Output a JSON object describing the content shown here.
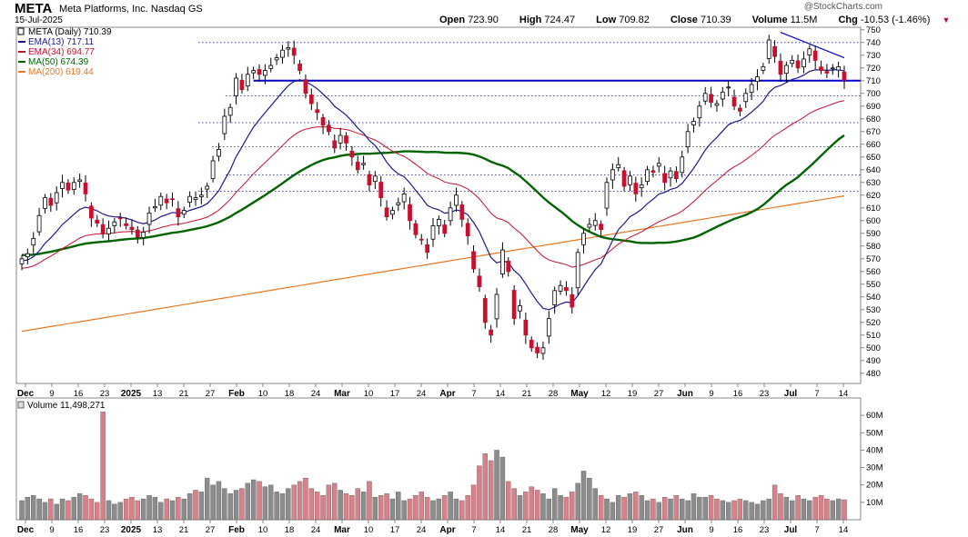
{
  "header": {
    "symbol": "META",
    "company": "Meta Platforms, Inc.  Nasdaq GS",
    "date": "15-Jul-2025",
    "watermark": "@StockCharts.com",
    "open_label": "Open",
    "open": "723.90",
    "high_label": "High",
    "high": "724.47",
    "low_label": "Low",
    "low": "709.82",
    "close_label": "Close",
    "close": "710.39",
    "volume_label": "Volume",
    "volume": "11.5M",
    "chg_label": "Chg",
    "chg": "-10.53 (-1.46%)"
  },
  "legend": [
    {
      "label": "META (Daily) 710.39",
      "color": "#000000"
    },
    {
      "label": "EMA(13) 717.11",
      "color": "#1a1a8c"
    },
    {
      "label": "EMA(34) 694.77",
      "color": "#c8102e"
    },
    {
      "label": "MA(50) 674.39",
      "color": "#006400"
    },
    {
      "label": "MA(200) 619.44",
      "color": "#e87722"
    }
  ],
  "volume_legend": "Volume 11,498,271",
  "colors": {
    "up": "#8c8c8c",
    "down": "#c8102e",
    "vol_up": "#8c8c8c",
    "vol_down": "#d98088",
    "support": "#0000cc",
    "ema13": "#1a1a8c",
    "ema34": "#c8102e",
    "ma50": "#006400",
    "ma200": "#e87722"
  },
  "chart_data": [
    {
      "type": "candlestick",
      "title": "META (Daily)",
      "ylim": [
        472,
        752
      ],
      "y_ticks": [
        480,
        490,
        500,
        510,
        520,
        530,
        540,
        550,
        560,
        570,
        580,
        590,
        600,
        610,
        620,
        630,
        640,
        650,
        660,
        670,
        680,
        690,
        700,
        710,
        720,
        730,
        740,
        750
      ],
      "x_tick_labels": [
        "Dec",
        "9",
        "16",
        "23",
        "2025",
        "13",
        "21",
        "27",
        "Feb",
        "10",
        "18",
        "24",
        "Mar",
        "10",
        "17",
        "24",
        "Apr",
        "7",
        "14",
        "21",
        "28",
        "May",
        "12",
        "19",
        "27",
        "Jun",
        "9",
        "16",
        "23",
        "Jul",
        "7",
        "14"
      ],
      "bold_tick_labels": [
        "Dec",
        "2025",
        "Feb",
        "Mar",
        "Apr",
        "May",
        "Jun",
        "Jul"
      ],
      "close": [
        570,
        574,
        586,
        604,
        618,
        612,
        622,
        630,
        624,
        630,
        632,
        621,
        602,
        598,
        590,
        594,
        599,
        602,
        596,
        593,
        587,
        591,
        606,
        611,
        619,
        614,
        617,
        603,
        608,
        619,
        618,
        620,
        627,
        647,
        656,
        682,
        689,
        712,
        703,
        715,
        718,
        715,
        718,
        722,
        728,
        734,
        736,
        730,
        718,
        700,
        692,
        685,
        675,
        670,
        657,
        667,
        661,
        650,
        640,
        645,
        628,
        635,
        618,
        603,
        608,
        614,
        621,
        600,
        589,
        585,
        575,
        596,
        601,
        590,
        610,
        620,
        601,
        588,
        562,
        548,
        520,
        510,
        542,
        577,
        560,
        523,
        533,
        510,
        500,
        496,
        500,
        523,
        545,
        549,
        545,
        532,
        575,
        590,
        597,
        600,
        593,
        630,
        640,
        644,
        627,
        635,
        621,
        628,
        640,
        638,
        645,
        630,
        639,
        633,
        650,
        670,
        678,
        690,
        700,
        693,
        692,
        701,
        705,
        690,
        686,
        700,
        707,
        713,
        721,
        742,
        729,
        715,
        722,
        726,
        720,
        727,
        735,
        726,
        718,
        716,
        720,
        721,
        710.4
      ],
      "highlight_levels": [
        740,
        710,
        698,
        677,
        658,
        636,
        623
      ],
      "resistance_trendline": [
        [
          131,
          748
        ],
        [
          142,
          728
        ]
      ],
      "ema13_last": 717.11,
      "ema34_last": 694.77,
      "ma50_last": 674.39,
      "ma200_last": 619.44
    },
    {
      "type": "bar",
      "title": "Volume",
      "ylim": [
        0,
        70
      ],
      "y_tick_labels": [
        "10M",
        "20M",
        "30M",
        "40M",
        "50M",
        "60M"
      ],
      "y_ticks": [
        10,
        20,
        30,
        40,
        50,
        60
      ],
      "values": [
        11,
        13,
        14,
        12,
        10,
        12,
        9,
        12,
        11,
        13,
        15,
        14,
        12,
        10,
        62,
        11,
        9,
        10,
        12,
        13,
        11,
        12,
        14,
        13,
        10,
        12,
        11,
        13,
        12,
        15,
        17,
        16,
        24,
        20,
        22,
        18,
        15,
        17,
        18,
        21,
        23,
        22,
        19,
        20,
        16,
        15,
        18,
        20,
        22,
        24,
        18,
        16,
        14,
        20,
        21,
        17,
        15,
        14,
        18,
        16,
        22,
        13,
        14,
        15,
        12,
        16,
        11,
        12,
        14,
        16,
        13,
        11,
        12,
        14,
        16,
        12,
        11,
        14,
        20,
        31,
        38,
        34,
        40,
        36,
        22,
        18,
        14,
        16,
        19,
        17,
        15,
        12,
        18,
        14,
        13,
        16,
        21,
        28,
        24,
        18,
        14,
        12,
        10,
        14,
        13,
        15,
        16,
        14,
        11,
        12,
        10,
        13,
        12,
        14,
        12,
        11,
        15,
        13,
        13,
        14,
        12,
        11,
        10,
        11,
        12,
        11,
        10,
        9,
        11,
        12,
        20,
        15,
        13,
        11,
        14,
        12,
        11,
        13,
        14,
        12,
        11,
        12,
        11.5
      ]
    }
  ]
}
